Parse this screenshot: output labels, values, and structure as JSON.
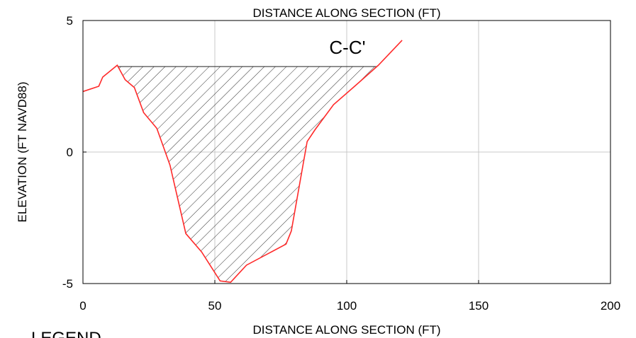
{
  "chart_data": {
    "type": "area",
    "title": "C-C'",
    "top_axis_label": "DISTANCE ALONG SECTION (FT)",
    "xlabel": "DISTANCE ALONG SECTION (FT)",
    "ylabel": "ELEVATION (FT NAVD88)",
    "xlim": [
      0,
      200
    ],
    "ylim": [
      -5,
      5
    ],
    "x_ticks": [
      0,
      50,
      100,
      150,
      200
    ],
    "y_ticks": [
      -5,
      0,
      5
    ],
    "x_tick_labels": [
      "0",
      "50",
      "100",
      "150",
      "200"
    ],
    "y_tick_labels": [
      "-5",
      "0",
      "5"
    ],
    "grid": true,
    "legend_text": "LEGEND",
    "series": [
      {
        "points": [
          [
            0,
            2.3
          ],
          [
            6,
            2.5
          ],
          [
            7.5,
            2.85
          ],
          [
            13,
            3.3
          ],
          [
            16,
            2.75
          ],
          [
            19.5,
            2.45
          ],
          [
            23,
            1.5
          ],
          [
            28,
            0.9
          ],
          [
            33,
            -0.5
          ],
          [
            39,
            -3.1
          ],
          [
            45,
            -3.8
          ],
          [
            52,
            -4.9
          ],
          [
            56,
            -4.95
          ],
          [
            62,
            -4.3
          ],
          [
            77,
            -3.5
          ],
          [
            79,
            -3.0
          ],
          [
            85,
            0.4
          ],
          [
            88,
            0.85
          ],
          [
            95,
            1.8
          ],
          [
            103,
            2.5
          ],
          [
            112,
            3.3
          ],
          [
            121,
            4.25
          ]
        ]
      }
    ],
    "water_surface_elevation": 3.25,
    "colors": {
      "profile": "#ff2a2a",
      "hatch": "#333333",
      "grid": "#c8c8c8",
      "frame": "#000000"
    }
  }
}
